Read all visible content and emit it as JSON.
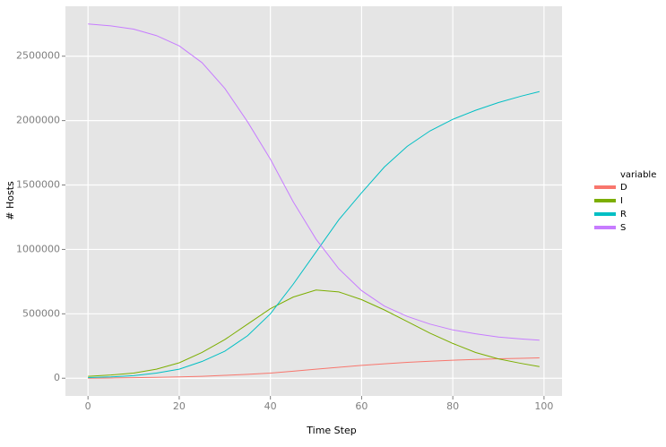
{
  "chart_data": {
    "type": "line",
    "x_label": "Time Step",
    "y_label": "# Hosts",
    "legend_title": "variable",
    "x": [
      0,
      5,
      10,
      15,
      20,
      25,
      30,
      35,
      40,
      45,
      50,
      55,
      60,
      65,
      70,
      75,
      80,
      85,
      90,
      95,
      99
    ],
    "series": [
      {
        "name": "D",
        "color": "#F8766D",
        "values": [
          0,
          2000,
          4000,
          7000,
          10000,
          15000,
          22000,
          30000,
          40000,
          55000,
          70000,
          85000,
          100000,
          112000,
          123000,
          132000,
          140000,
          146000,
          151000,
          155000,
          158000
        ]
      },
      {
        "name": "I",
        "color": "#7CAE00",
        "values": [
          15000,
          25000,
          40000,
          70000,
          120000,
          200000,
          300000,
          420000,
          540000,
          630000,
          685000,
          670000,
          610000,
          530000,
          440000,
          350000,
          270000,
          200000,
          150000,
          115000,
          90000
        ]
      },
      {
        "name": "R",
        "color": "#00BFC4",
        "values": [
          5000,
          10000,
          20000,
          40000,
          70000,
          130000,
          210000,
          330000,
          500000,
          730000,
          980000,
          1230000,
          1440000,
          1640000,
          1800000,
          1920000,
          2010000,
          2080000,
          2140000,
          2190000,
          2225000
        ]
      },
      {
        "name": "S",
        "color": "#C77CFF",
        "values": [
          2750000,
          2735000,
          2710000,
          2660000,
          2580000,
          2450000,
          2250000,
          1990000,
          1700000,
          1370000,
          1080000,
          850000,
          680000,
          560000,
          480000,
          420000,
          375000,
          345000,
          320000,
          305000,
          295000
        ]
      }
    ],
    "xlim": [
      -4.95,
      103.95
    ],
    "xticks": [
      0,
      20,
      40,
      60,
      80,
      100
    ],
    "ylim": [
      -137500,
      2887500
    ],
    "yticks": [
      0,
      500000,
      1000000,
      1500000,
      2000000,
      2500000
    ],
    "grid": true,
    "legend": "right"
  }
}
